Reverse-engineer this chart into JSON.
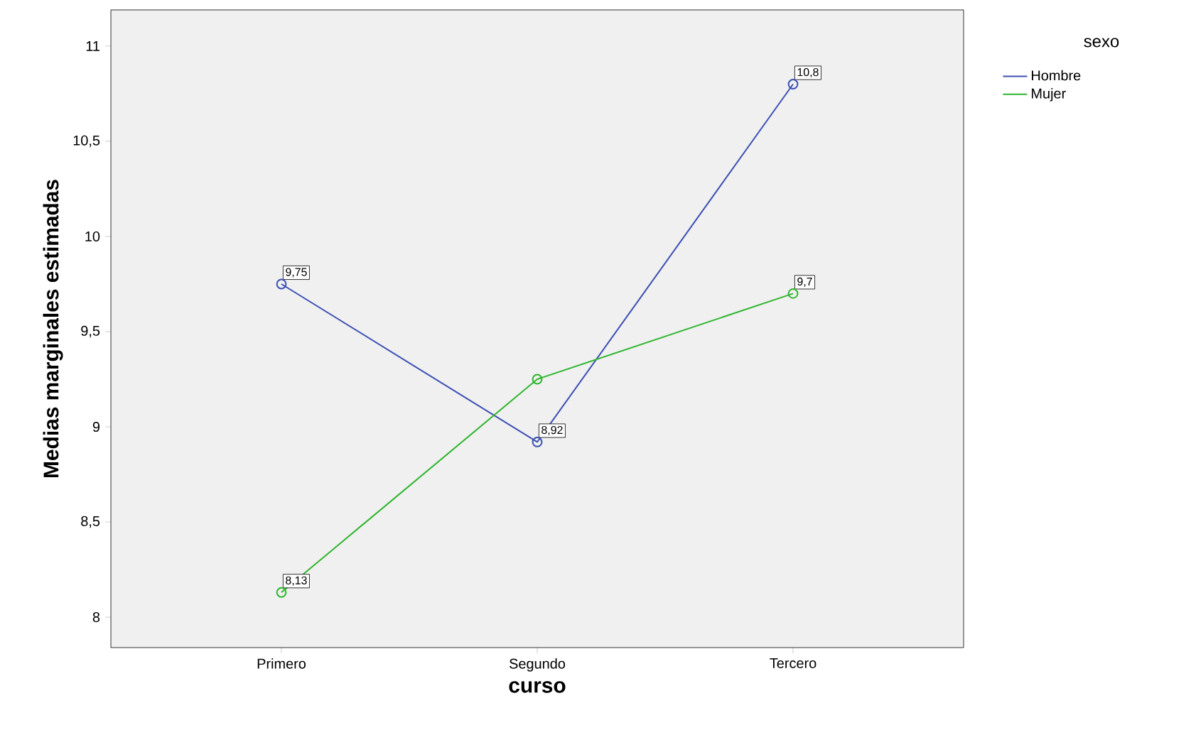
{
  "chart_data": {
    "type": "line",
    "xlabel": "curso",
    "ylabel": "Medias marginales estimadas",
    "legend_title": "sexo",
    "categories": [
      "Primero",
      "Segundo",
      "Tercero"
    ],
    "series": [
      {
        "name": "Hombre",
        "color": "#3c4fb4",
        "values": [
          9.75,
          8.92,
          10.8
        ],
        "value_labels": [
          "9,75",
          "8,92",
          "10,8"
        ]
      },
      {
        "name": "Mujer",
        "color": "#2fb52f",
        "values": [
          8.13,
          9.25,
          9.7
        ],
        "value_labels": [
          "8,13",
          null,
          "9,7"
        ]
      }
    ],
    "ylim": [
      7.84,
      11.19
    ],
    "yticks": [
      {
        "value": 8,
        "label": "8"
      },
      {
        "value": 8.5,
        "label": "8,5"
      },
      {
        "value": 9,
        "label": "9"
      },
      {
        "value": 9.5,
        "label": "9,5"
      },
      {
        "value": 10,
        "label": "10"
      },
      {
        "value": 10.5,
        "label": "10,5"
      },
      {
        "value": 11,
        "label": "11"
      }
    ],
    "grid": false,
    "legend": "top right",
    "marker": "circle",
    "line_style": "solid"
  }
}
